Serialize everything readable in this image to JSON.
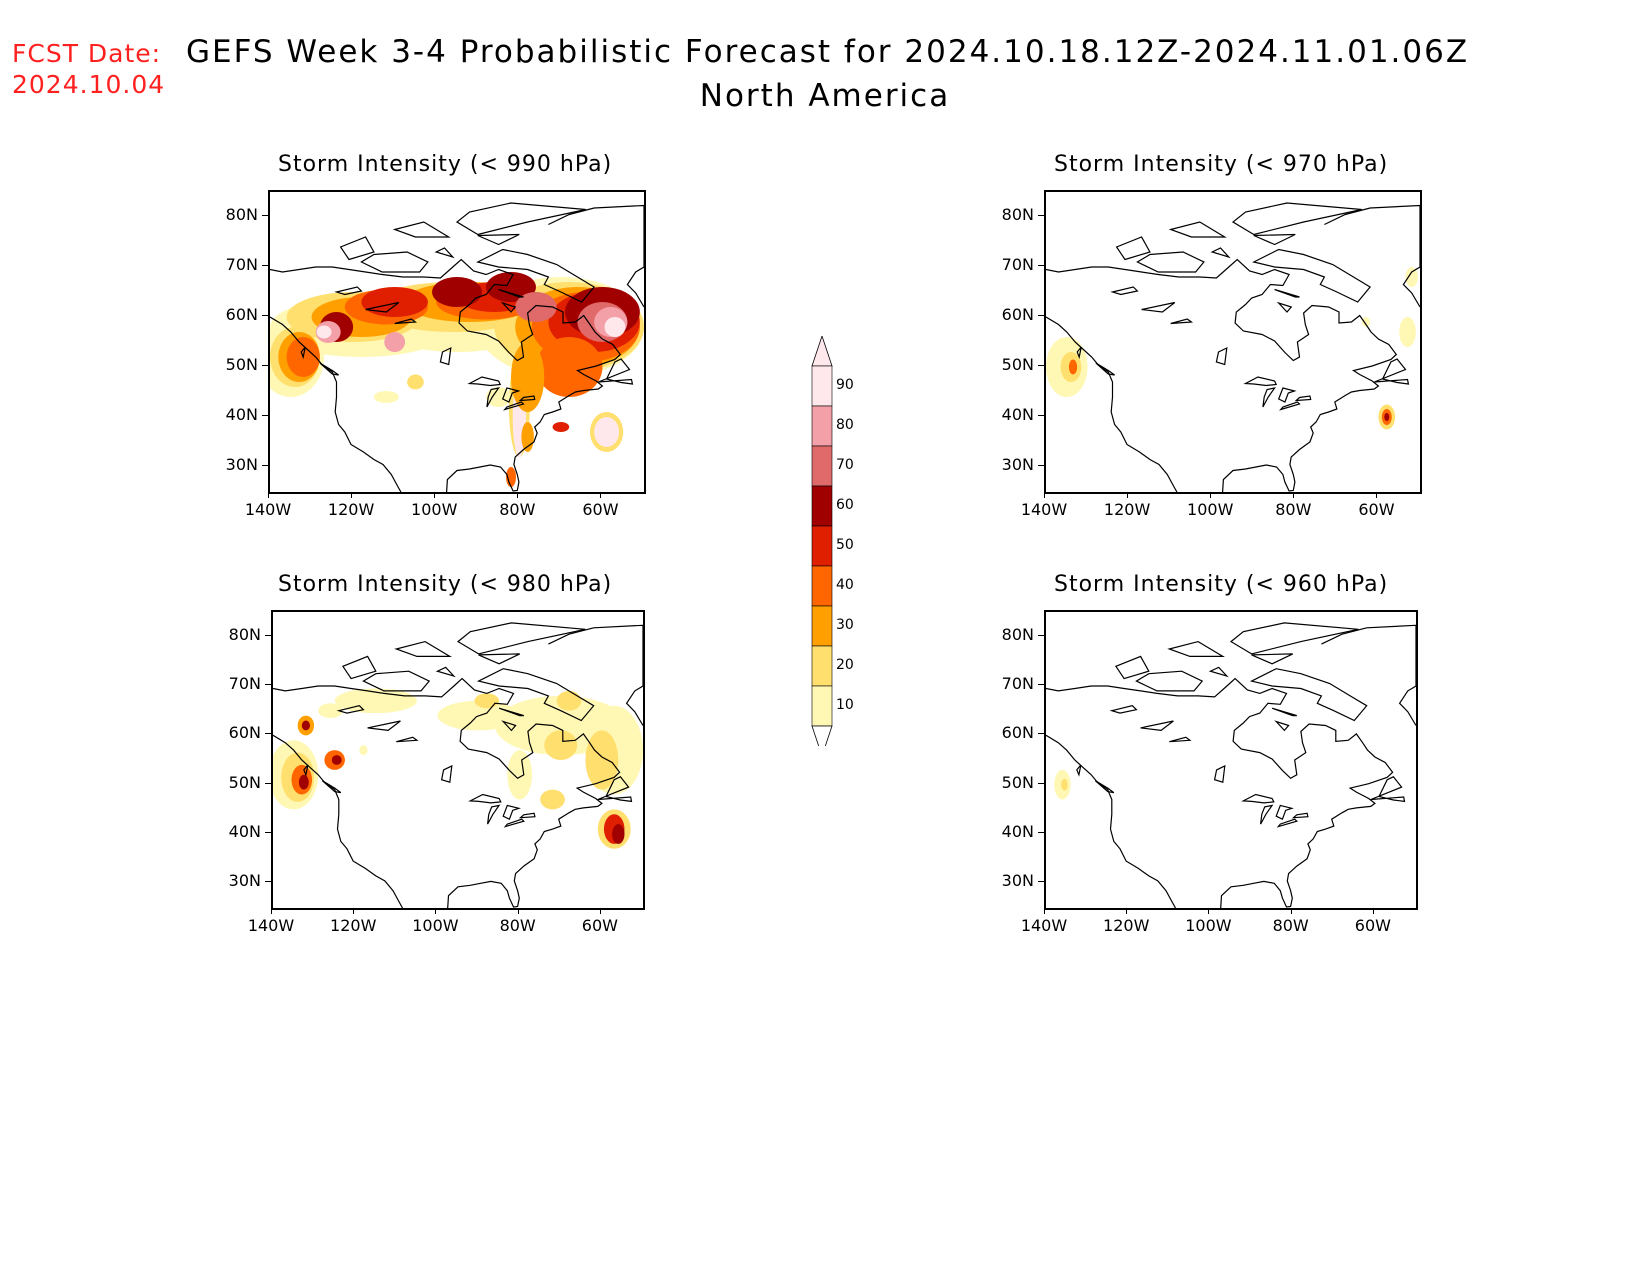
{
  "header": {
    "fcst_label": "FCST Date:",
    "fcst_date": "2024.10.04",
    "title_line1": "GEFS Week 3-4 Probabilistic Forecast for 2024.10.18.12Z-2024.11.01.06Z",
    "title_line2": "North America"
  },
  "panels": [
    {
      "title": "Storm Intensity (< 990 hPa)",
      "intensity": "high"
    },
    {
      "title": "Storm Intensity (< 970 hPa)",
      "intensity": "low"
    },
    {
      "title": "Storm Intensity (< 980 hPa)",
      "intensity": "medium"
    },
    {
      "title": "Storm Intensity (< 960 hPa)",
      "intensity": "minimal"
    }
  ],
  "axes": {
    "lat_labels": [
      "80N",
      "70N",
      "60N",
      "50N",
      "40N",
      "30N"
    ],
    "lon_labels": [
      "140W",
      "120W",
      "100W",
      "80W",
      "60W"
    ]
  },
  "legend": {
    "levels": [
      "90",
      "80",
      "70",
      "60",
      "50",
      "40",
      "30",
      "20",
      "10"
    ],
    "colors": [
      "#ffe8ec",
      "#f4a0a8",
      "#e06a6a",
      "#a00000",
      "#e01e00",
      "#ff6600",
      "#ff9f00",
      "#ffdf6e",
      "#fff8b4"
    ]
  },
  "chart_data": {
    "type": "heatmap",
    "title": "GEFS Week 3-4 Probabilistic Forecast for 2024.10.18.12Z-2024.11.01.06Z",
    "region": "North America",
    "lat_range": [
      25,
      85
    ],
    "lon_range": [
      -140,
      -50
    ],
    "levels_percent": [
      10,
      20,
      30,
      40,
      50,
      60,
      70,
      80,
      90
    ],
    "panels": [
      "< 990 hPa",
      "< 970 hPa",
      "< 980 hPa",
      "< 960 hPa"
    ]
  }
}
